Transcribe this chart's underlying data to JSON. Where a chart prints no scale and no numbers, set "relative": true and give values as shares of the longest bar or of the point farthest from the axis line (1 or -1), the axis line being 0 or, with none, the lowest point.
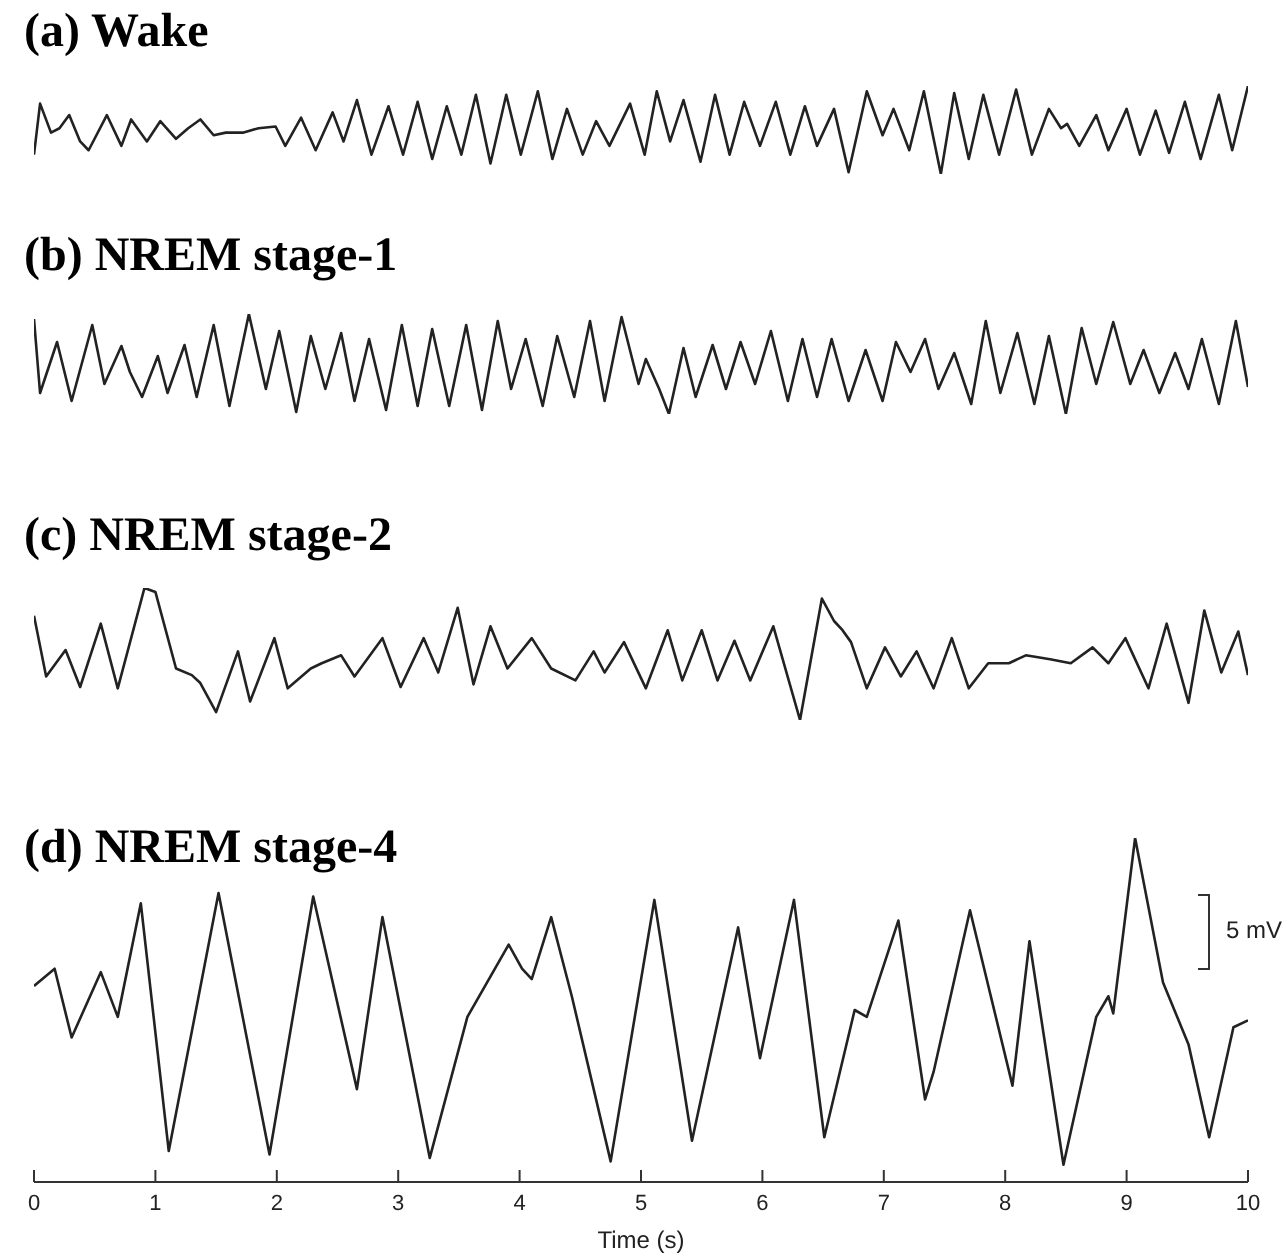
{
  "chart_data": [
    {
      "type": "line",
      "title": "(a) Wake",
      "relative": true,
      "xlim": [
        0,
        10
      ],
      "tick_labels": false,
      "color": "#222222",
      "x": [
        0,
        0.05,
        0.14,
        0.21,
        0.29,
        0.38,
        0.45,
        0.6,
        0.72,
        0.8,
        0.93,
        1.04,
        1.17,
        1.27,
        1.37,
        1.48,
        1.58,
        1.72,
        1.85,
        1.99,
        2.07,
        2.2,
        2.32,
        2.46,
        2.55,
        2.66,
        2.78,
        2.92,
        3.04,
        3.16,
        3.28,
        3.4,
        3.52,
        3.64,
        3.76,
        3.89,
        4.01,
        4.15,
        4.27,
        4.39,
        4.52,
        4.63,
        4.74,
        4.91,
        5.03,
        5.13,
        5.24,
        5.35,
        5.49,
        5.61,
        5.73,
        5.85,
        5.98,
        6.11,
        6.23,
        6.35,
        6.45,
        6.59,
        6.71,
        6.86,
        6.99,
        7.08,
        7.21,
        7.33,
        7.47,
        7.58,
        7.7,
        7.82,
        7.95,
        8.09,
        8.22,
        8.36,
        8.46,
        8.51,
        8.61,
        8.75,
        8.85,
        9,
        9.11,
        9.24,
        9.35,
        9.48,
        9.61,
        9.76,
        9.87,
        10
      ],
      "values": [
        0.22,
        0.8,
        0.47,
        0.52,
        0.67,
        0.37,
        0.27,
        0.67,
        0.32,
        0.62,
        0.37,
        0.6,
        0.4,
        0.52,
        0.62,
        0.44,
        0.47,
        0.47,
        0.52,
        0.54,
        0.32,
        0.64,
        0.27,
        0.7,
        0.37,
        0.84,
        0.22,
        0.77,
        0.22,
        0.82,
        0.17,
        0.77,
        0.22,
        0.9,
        0.12,
        0.9,
        0.22,
        0.94,
        0.17,
        0.74,
        0.22,
        0.6,
        0.32,
        0.8,
        0.22,
        0.94,
        0.37,
        0.84,
        0.14,
        0.9,
        0.22,
        0.82,
        0.32,
        0.82,
        0.22,
        0.77,
        0.32,
        0.74,
        0.02,
        0.94,
        0.44,
        0.74,
        0.27,
        0.94,
        0,
        0.92,
        0.17,
        0.9,
        0.22,
        0.96,
        0.22,
        0.74,
        0.52,
        0.57,
        0.32,
        0.67,
        0.27,
        0.74,
        0.22,
        0.72,
        0.24,
        0.82,
        0.17,
        0.9,
        0.27,
        1
      ]
    },
    {
      "type": "line",
      "title": "(b) NREM stage-1",
      "relative": true,
      "xlim": [
        0,
        10
      ],
      "tick_labels": false,
      "color": "#222222",
      "x": [
        0,
        0.05,
        0.19,
        0.31,
        0.48,
        0.58,
        0.72,
        0.79,
        0.89,
        1.02,
        1.1,
        1.24,
        1.34,
        1.48,
        1.61,
        1.77,
        1.91,
        2.02,
        2.16,
        2.28,
        2.4,
        2.53,
        2.64,
        2.76,
        2.9,
        3.03,
        3.16,
        3.28,
        3.42,
        3.56,
        3.69,
        3.82,
        3.93,
        4.05,
        4.19,
        4.31,
        4.45,
        4.58,
        4.7,
        4.84,
        4.98,
        5.04,
        5.15,
        5.23,
        5.35,
        5.45,
        5.59,
        5.7,
        5.82,
        5.94,
        6.07,
        6.21,
        6.33,
        6.45,
        6.57,
        6.71,
        6.85,
        6.99,
        7.1,
        7.22,
        7.34,
        7.45,
        7.58,
        7.72,
        7.84,
        7.96,
        8.1,
        8.24,
        8.36,
        8.5,
        8.63,
        8.75,
        8.89,
        9.03,
        9.14,
        9.27,
        9.4,
        9.51,
        9.62,
        9.76,
        9.9,
        10
      ],
      "values": [
        0.95,
        0.21,
        0.72,
        0.13,
        0.89,
        0.3,
        0.68,
        0.42,
        0.17,
        0.58,
        0.21,
        0.69,
        0.17,
        0.89,
        0.08,
        1,
        0.25,
        0.83,
        0.02,
        0.78,
        0.25,
        0.81,
        0.13,
        0.75,
        0.04,
        0.89,
        0.08,
        0.85,
        0.08,
        0.89,
        0.04,
        0.93,
        0.25,
        0.75,
        0.08,
        0.78,
        0.17,
        0.93,
        0.13,
        0.97,
        0.3,
        0.55,
        0.25,
        0,
        0.66,
        0.17,
        0.69,
        0.25,
        0.72,
        0.3,
        0.83,
        0.13,
        0.75,
        0.17,
        0.75,
        0.13,
        0.64,
        0.13,
        0.72,
        0.42,
        0.75,
        0.25,
        0.61,
        0.1,
        0.93,
        0.21,
        0.81,
        0.1,
        0.78,
        0,
        0.86,
        0.3,
        0.92,
        0.3,
        0.64,
        0.21,
        0.61,
        0.25,
        0.75,
        0.1,
        0.93,
        0.27
      ]
    },
    {
      "type": "line",
      "title": "(c) NREM stage-2",
      "relative": true,
      "xlim": [
        0,
        10
      ],
      "tick_labels": false,
      "color": "#222222",
      "x": [
        0,
        0.1,
        0.26,
        0.38,
        0.55,
        0.69,
        0.91,
        1,
        1.17,
        1.3,
        1.37,
        1.5,
        1.68,
        1.78,
        1.98,
        2.09,
        2.28,
        2.37,
        2.53,
        2.64,
        2.87,
        3.02,
        3.21,
        3.33,
        3.49,
        3.62,
        3.76,
        3.9,
        4.1,
        4.26,
        4.46,
        4.61,
        4.7,
        4.86,
        5.04,
        5.22,
        5.34,
        5.5,
        5.63,
        5.77,
        5.9,
        6.09,
        6.31,
        6.49,
        6.59,
        6.66,
        6.73,
        6.86,
        7.01,
        7.14,
        7.27,
        7.41,
        7.56,
        7.7,
        7.86,
        8.03,
        8.17,
        8.37,
        8.54,
        8.72,
        8.85,
        8.99,
        9.18,
        9.33,
        9.51,
        9.64,
        9.78,
        9.92,
        10
      ],
      "values": [
        0.79,
        0.33,
        0.53,
        0.25,
        0.73,
        0.24,
        1,
        0.97,
        0.39,
        0.34,
        0.28,
        0.06,
        0.52,
        0.14,
        0.62,
        0.24,
        0.39,
        0.43,
        0.49,
        0.33,
        0.62,
        0.25,
        0.62,
        0.36,
        0.85,
        0.27,
        0.71,
        0.39,
        0.62,
        0.39,
        0.3,
        0.52,
        0.36,
        0.59,
        0.24,
        0.68,
        0.3,
        0.68,
        0.3,
        0.6,
        0.3,
        0.71,
        0,
        0.92,
        0.75,
        0.68,
        0.59,
        0.24,
        0.55,
        0.33,
        0.52,
        0.24,
        0.62,
        0.24,
        0.43,
        0.43,
        0.49,
        0.46,
        0.43,
        0.55,
        0.43,
        0.62,
        0.24,
        0.73,
        0.13,
        0.83,
        0.36,
        0.67,
        0.34
      ]
    },
    {
      "type": "line",
      "title": "(d) NREM stage-4",
      "relative": true,
      "xlim": [
        0,
        10
      ],
      "xticks": [
        0,
        1,
        2,
        3,
        4,
        5,
        6,
        7,
        8,
        9,
        10
      ],
      "xlabel": "Time (s)",
      "annotations": [
        "5 mV"
      ],
      "color": "#222222",
      "x": [
        0,
        0.17,
        0.31,
        0.55,
        0.69,
        0.88,
        1.11,
        1.52,
        1.94,
        2.3,
        2.66,
        2.87,
        3.26,
        3.57,
        3.91,
        4.02,
        4.1,
        4.26,
        4.43,
        4.75,
        5.11,
        5.42,
        5.8,
        5.98,
        6.26,
        6.51,
        6.76,
        6.86,
        7.12,
        7.34,
        7.41,
        7.71,
        8.06,
        8.2,
        8.48,
        8.75,
        8.85,
        8.89,
        9.07,
        9.3,
        9.51,
        9.68,
        9.88,
        10
      ],
      "values": [
        0.57,
        0.62,
        0.42,
        0.61,
        0.48,
        0.81,
        0.09,
        0.84,
        0.08,
        0.83,
        0.27,
        0.77,
        0.07,
        0.48,
        0.69,
        0.62,
        0.59,
        0.77,
        0.54,
        0.06,
        0.82,
        0.12,
        0.74,
        0.36,
        0.82,
        0.13,
        0.5,
        0.48,
        0.76,
        0.24,
        0.32,
        0.79,
        0.28,
        0.7,
        0.05,
        0.48,
        0.54,
        0.49,
        1,
        0.58,
        0.4,
        0.13,
        0.45,
        0.47
      ]
    }
  ]
}
